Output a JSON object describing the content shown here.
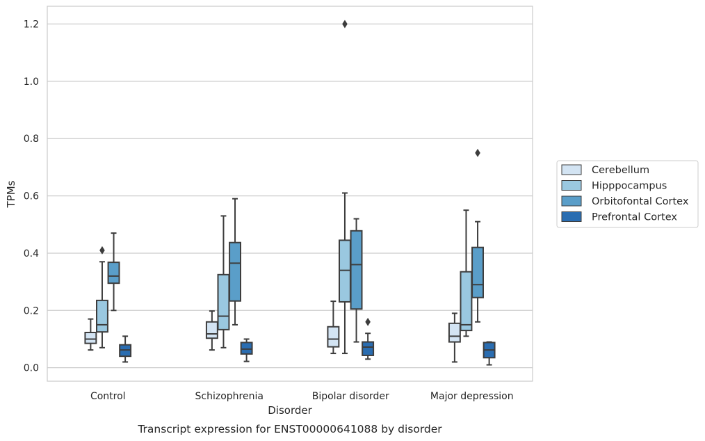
{
  "chart_data": {
    "type": "box",
    "title": "",
    "caption": "Transcript expression for ENST00000641088 by disorder",
    "xlabel": "Disorder",
    "ylabel": "TPMs",
    "ylim": [
      -0.047,
      1.262
    ],
    "yticks": [
      0.0,
      0.2,
      0.4,
      0.6,
      0.8,
      1.0,
      1.2
    ],
    "grid": true,
    "legend_position": "right",
    "categories": [
      "Control",
      "Schizophrenia",
      "Bipolar disorder",
      "Major depression"
    ],
    "series": [
      {
        "name": "Cerebellum",
        "color": "#d3e4f3",
        "boxes": [
          {
            "whislo": 0.062,
            "q1": 0.085,
            "med": 0.1,
            "q3": 0.123,
            "whishi": 0.17,
            "fliers": []
          },
          {
            "whislo": 0.062,
            "q1": 0.103,
            "med": 0.118,
            "q3": 0.16,
            "whishi": 0.198,
            "fliers": []
          },
          {
            "whislo": 0.05,
            "q1": 0.073,
            "med": 0.1,
            "q3": 0.143,
            "whishi": 0.232,
            "fliers": []
          },
          {
            "whislo": 0.02,
            "q1": 0.09,
            "med": 0.11,
            "q3": 0.155,
            "whishi": 0.19,
            "fliers": []
          }
        ]
      },
      {
        "name": "Hipppocampus",
        "color": "#9ac8e0",
        "boxes": [
          {
            "whislo": 0.07,
            "q1": 0.125,
            "med": 0.15,
            "q3": 0.235,
            "whishi": 0.37,
            "fliers": [
              0.41
            ]
          },
          {
            "whislo": 0.07,
            "q1": 0.133,
            "med": 0.18,
            "q3": 0.325,
            "whishi": 0.53,
            "fliers": []
          },
          {
            "whislo": 0.05,
            "q1": 0.23,
            "med": 0.34,
            "q3": 0.445,
            "whishi": 0.61,
            "fliers": [
              1.2
            ]
          },
          {
            "whislo": 0.11,
            "q1": 0.13,
            "med": 0.15,
            "q3": 0.335,
            "whishi": 0.55,
            "fliers": []
          }
        ]
      },
      {
        "name": "Orbitofontal Cortex",
        "color": "#5a9ec9",
        "boxes": [
          {
            "whislo": 0.2,
            "q1": 0.295,
            "med": 0.32,
            "q3": 0.368,
            "whishi": 0.47,
            "fliers": []
          },
          {
            "whislo": 0.15,
            "q1": 0.233,
            "med": 0.365,
            "q3": 0.437,
            "whishi": 0.59,
            "fliers": []
          },
          {
            "whislo": 0.09,
            "q1": 0.205,
            "med": 0.36,
            "q3": 0.478,
            "whishi": 0.52,
            "fliers": []
          },
          {
            "whislo": 0.16,
            "q1": 0.245,
            "med": 0.29,
            "q3": 0.42,
            "whishi": 0.51,
            "fliers": [
              0.75
            ]
          }
        ]
      },
      {
        "name": "Prefrontal Cortex",
        "color": "#2a6db1",
        "boxes": [
          {
            "whislo": 0.02,
            "q1": 0.04,
            "med": 0.062,
            "q3": 0.08,
            "whishi": 0.11,
            "fliers": []
          },
          {
            "whislo": 0.022,
            "q1": 0.048,
            "med": 0.065,
            "q3": 0.088,
            "whishi": 0.1,
            "fliers": []
          },
          {
            "whislo": 0.03,
            "q1": 0.043,
            "med": 0.072,
            "q3": 0.09,
            "whishi": 0.12,
            "fliers": [
              0.16
            ]
          },
          {
            "whislo": 0.01,
            "q1": 0.035,
            "med": 0.062,
            "q3": 0.088,
            "whishi": 0.09,
            "fliers": []
          }
        ]
      }
    ]
  }
}
